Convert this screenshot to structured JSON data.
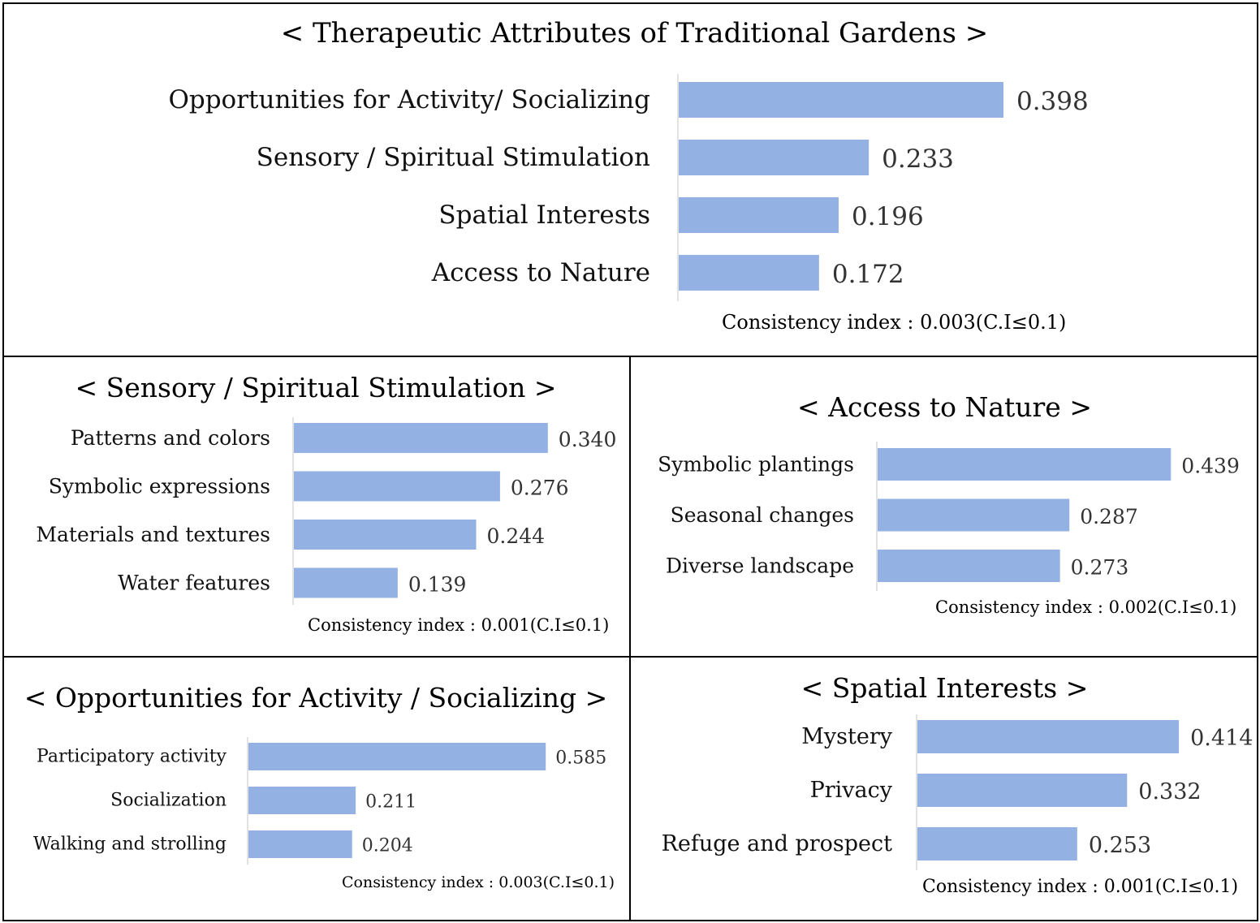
{
  "bar_color": "#93b1e3",
  "chart_data": [
    {
      "type": "bar",
      "orientation": "horizontal",
      "title": "< Therapeutic Attributes of Traditional Gardens >",
      "categories": [
        "Opportunities for Activity/ Socializing",
        "Sensory / Spiritual Stimulation",
        "Spatial Interests",
        "Access to Nature"
      ],
      "values": [
        0.398,
        0.233,
        0.196,
        0.172
      ],
      "value_labels": [
        "0.398",
        "0.233",
        "0.196",
        "0.172"
      ],
      "xlim": [
        0,
        0.5
      ],
      "consistency": "Consistency index : 0.003(C.I≤0.1)"
    },
    {
      "type": "bar",
      "orientation": "horizontal",
      "title": "< Sensory / Spiritual Stimulation >",
      "categories": [
        "Patterns and colors",
        "Symbolic expressions",
        "Materials and textures",
        "Water features"
      ],
      "values": [
        0.34,
        0.276,
        0.244,
        0.139
      ],
      "value_labels": [
        "0.340",
        "0.276",
        "0.244",
        "0.139"
      ],
      "xlim": [
        0,
        0.4
      ],
      "consistency": "Consistency index : 0.001(C.I≤0.1)"
    },
    {
      "type": "bar",
      "orientation": "horizontal",
      "title": "< Access to Nature >",
      "categories": [
        "Symbolic plantings",
        "Seasonal changes",
        "Diverse landscape"
      ],
      "values": [
        0.439,
        0.287,
        0.273
      ],
      "value_labels": [
        "0.439",
        "0.287",
        "0.273"
      ],
      "xlim": [
        0,
        0.5
      ],
      "consistency": "Consistency index : 0.002(C.I≤0.1)"
    },
    {
      "type": "bar",
      "orientation": "horizontal",
      "title": "< Opportunities for Activity / Socializing >",
      "categories": [
        "Participatory activity",
        "Socialization",
        "Walking and strolling"
      ],
      "values": [
        0.585,
        0.211,
        0.204
      ],
      "value_labels": [
        "0.585",
        "0.211",
        "0.204"
      ],
      "xlim": [
        0,
        0.7
      ],
      "consistency": "Consistency index : 0.003(C.I≤0.1)"
    },
    {
      "type": "bar",
      "orientation": "horizontal",
      "title": "< Spatial Interests >",
      "categories": [
        "Mystery",
        "Privacy",
        "Refuge and prospect"
      ],
      "values": [
        0.414,
        0.332,
        0.253
      ],
      "value_labels": [
        "0.414",
        "0.332",
        "0.253"
      ],
      "xlim": [
        0,
        0.5
      ],
      "consistency": "Consistency index : 0.001(C.I≤0.1)"
    }
  ]
}
